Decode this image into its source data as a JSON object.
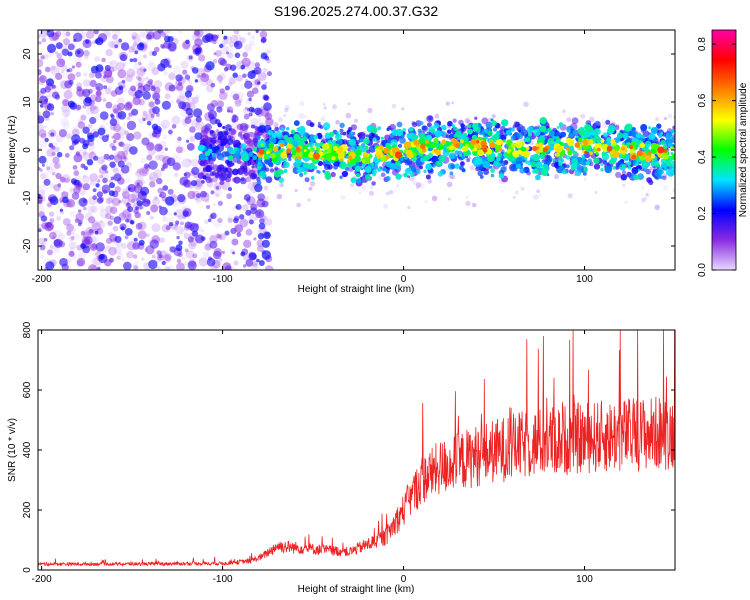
{
  "title": "S196.2025.274.00.37.G32",
  "chart_data": [
    {
      "type": "heatmap",
      "name": "spectrogram",
      "xlabel": "Height of straight line (km)",
      "ylabel": "Frequency (Hz)",
      "xlim": [
        -202,
        150
      ],
      "ylim": [
        -25,
        25
      ],
      "xticks": [
        -200,
        -100,
        0,
        100
      ],
      "yticks": [
        -20,
        -10,
        0,
        10,
        20
      ],
      "noise_region_x": [
        -202,
        -78
      ],
      "signal_band_hz": [
        -5,
        5
      ],
      "colorbar": {
        "label": "Normalized spectral amplitude",
        "range": [
          0.0,
          0.85
        ],
        "ticks": [
          0.0,
          0.2,
          0.4,
          0.6,
          0.8
        ],
        "tick_labels": [
          "0.0",
          "0.2",
          "0.4",
          "0.6",
          "0.8"
        ],
        "colors": [
          "#e8d8ff",
          "#8a2be2",
          "#0000ff",
          "#00e5ff",
          "#00ff00",
          "#ffff00",
          "#ff8000",
          "#ff0000",
          "#ff00aa"
        ]
      }
    },
    {
      "type": "line",
      "name": "snr",
      "xlabel": "Height of straight line (km)",
      "ylabel": "SNR (10 * v/v)",
      "xlim": [
        -202,
        150
      ],
      "ylim": [
        0,
        800
      ],
      "xticks": [
        -200,
        -100,
        0,
        100
      ],
      "yticks": [
        0,
        200,
        400,
        600,
        800
      ],
      "color": "#ee2222",
      "trend": {
        "x": [
          -202,
          -150,
          -100,
          -85,
          -78,
          -70,
          -50,
          -30,
          -10,
          0,
          10,
          20,
          40,
          60,
          80,
          100,
          120,
          150
        ],
        "y": [
          20,
          20,
          22,
          30,
          45,
          80,
          70,
          60,
          110,
          200,
          300,
          340,
          380,
          410,
          430,
          440,
          450,
          460
        ]
      }
    }
  ]
}
